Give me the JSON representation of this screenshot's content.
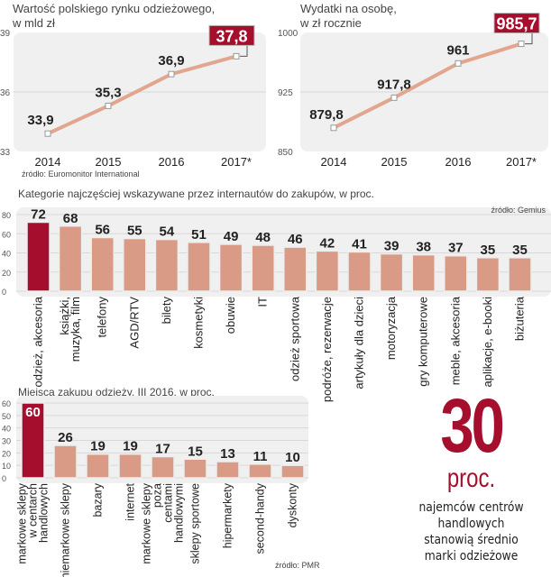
{
  "chart_data": [
    {
      "type": "line",
      "title": "Wartość polskiego rynku odzieżowego,",
      "subtitle": "w mld zł",
      "categories": [
        "2014",
        "2015",
        "2016",
        "2017*"
      ],
      "values": [
        33.9,
        35.3,
        36.9,
        37.8
      ],
      "labels": [
        "33,9",
        "35,3",
        "36,9",
        "37,8"
      ],
      "ylim": [
        33,
        39
      ],
      "yticks": [
        "33",
        "36",
        "39"
      ],
      "highlight_index": 3,
      "source": "źródło: Euromonitor International"
    },
    {
      "type": "line",
      "title": "Wydatki na osobę,",
      "subtitle": "w zł rocznie",
      "categories": [
        "2014",
        "2015",
        "2016",
        "2017*"
      ],
      "values": [
        879.8,
        917.8,
        961,
        985.7
      ],
      "labels": [
        "879,8",
        "917,8",
        "961",
        "985,7"
      ],
      "ylim": [
        850,
        1000
      ],
      "yticks": [
        "850",
        "925",
        "1000"
      ],
      "highlight_index": 3
    },
    {
      "type": "bar",
      "title": "Kategorie najczęściej wskazywane przez internautów do zakupów, w proc.",
      "source": "źródło: Gemius",
      "categories": [
        "odzież, akcesoria",
        "książki,\nmuzyka, film",
        "telefony",
        "AGD/RTV",
        "bilety",
        "kosmetyki",
        "obuwie",
        "IT",
        "odzież sportowa",
        "podróże, rezerwacje",
        "artykuły dla dzieci",
        "motoryzacja",
        "gry komputerowe",
        "meble, akcesoria",
        "aplikacje, e-booki",
        "biżuteria"
      ],
      "values": [
        72,
        68,
        56,
        55,
        54,
        51,
        49,
        48,
        46,
        42,
        41,
        39,
        38,
        37,
        35,
        35
      ],
      "ylim": [
        0,
        80
      ],
      "yticks": [
        "0",
        "20",
        "40",
        "60",
        "80"
      ],
      "highlight_index": 0
    },
    {
      "type": "bar",
      "title": "Miejsca zakupu odzieży, III 2016, w proc.",
      "source": "źródło: PMR",
      "categories": [
        "markowe sklepy\nw centarch\nhandlowych",
        "niemarkowe sklepy",
        "bazary",
        "internet",
        "markowe sklepy\npoza\ncentami\nhandlowymi",
        "sklepy sportowe",
        "hipermarkety",
        "second-handy",
        "dyskonty"
      ],
      "values": [
        60,
        26,
        19,
        19,
        17,
        15,
        13,
        11,
        10
      ],
      "ylim": [
        0,
        60
      ],
      "yticks": [
        "0",
        "10",
        "20",
        "30",
        "40",
        "50",
        "60"
      ],
      "highlight_index": 0
    }
  ],
  "callout": {
    "number": "30",
    "unit": "proc.",
    "text": "najemców centrów\nhandlowych\nstanowią średnio\nmarki odzieżowe"
  },
  "colors": {
    "accent": "#a50e2d",
    "bar": "#d99b85",
    "line": "#e2a58e",
    "panel": "#f0f0f0",
    "grid": "#d8d8d8"
  }
}
